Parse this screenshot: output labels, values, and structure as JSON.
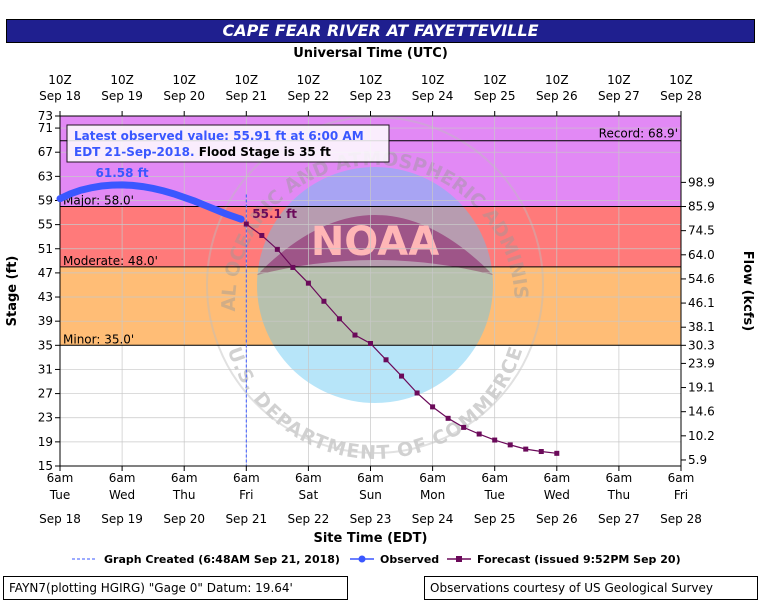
{
  "header": {
    "title": "CAPE FEAR RIVER AT FAYETTEVILLE"
  },
  "footer": {
    "left": "FAYN7(plotting HGIRG) \"Gage 0\" Datum: 19.64'",
    "right": "Observations courtesy of US Geological Survey"
  },
  "watermark": {
    "top_text": "NATIONAL OCEANIC AND ATMOSPHERIC ADMINISTRATION",
    "center_text": "NOAA",
    "bottom_text": "U.S. DEPARTMENT OF COMMERCE"
  },
  "chart_data": {
    "type": "line",
    "title": "CAPE FEAR RIVER AT FAYETTEVILLE",
    "top_axis_label": "Universal Time (UTC)",
    "xlabel": "Site Time (EDT)",
    "ylabel": "Stage (ft)",
    "y2label": "Flow (kcfs)",
    "ylim": [
      15,
      73
    ],
    "xlim": [
      0,
      240
    ],
    "yticks": [
      15,
      19,
      23,
      27,
      31,
      35,
      39,
      43,
      47,
      51,
      55,
      59,
      63,
      67,
      71,
      73
    ],
    "y2ticks": [
      {
        "stage": 16,
        "label": "5.9"
      },
      {
        "stage": 20,
        "label": "10.2"
      },
      {
        "stage": 24,
        "label": "14.6"
      },
      {
        "stage": 28,
        "label": "19.1"
      },
      {
        "stage": 32,
        "label": "23.9"
      },
      {
        "stage": 35,
        "label": "30.3"
      },
      {
        "stage": 38,
        "label": "38.1"
      },
      {
        "stage": 42,
        "label": "46.1"
      },
      {
        "stage": 46,
        "label": "54.6"
      },
      {
        "stage": 50,
        "label": "64.0"
      },
      {
        "stage": 54,
        "label": "74.5"
      },
      {
        "stage": 58,
        "label": "85.9"
      },
      {
        "stage": 62,
        "label": "98.9"
      }
    ],
    "top_ticks": [
      {
        "hour": 0,
        "time": "10Z",
        "date": "Sep 18"
      },
      {
        "hour": 24,
        "time": "10Z",
        "date": "Sep 19"
      },
      {
        "hour": 48,
        "time": "10Z",
        "date": "Sep 20"
      },
      {
        "hour": 72,
        "time": "10Z",
        "date": "Sep 21"
      },
      {
        "hour": 96,
        "time": "10Z",
        "date": "Sep 22"
      },
      {
        "hour": 120,
        "time": "10Z",
        "date": "Sep 23"
      },
      {
        "hour": 144,
        "time": "10Z",
        "date": "Sep 24"
      },
      {
        "hour": 168,
        "time": "10Z",
        "date": "Sep 25"
      },
      {
        "hour": 192,
        "time": "10Z",
        "date": "Sep 26"
      },
      {
        "hour": 216,
        "time": "10Z",
        "date": "Sep 27"
      },
      {
        "hour": 240,
        "time": "10Z",
        "date": "Sep 28"
      }
    ],
    "bottom_ticks": [
      {
        "hour": 0,
        "time": "6am",
        "day": "Tue",
        "date": "Sep 18"
      },
      {
        "hour": 24,
        "time": "6am",
        "day": "Wed",
        "date": "Sep 19"
      },
      {
        "hour": 48,
        "time": "6am",
        "day": "Thu",
        "date": "Sep 20"
      },
      {
        "hour": 72,
        "time": "6am",
        "day": "Fri",
        "date": "Sep 21"
      },
      {
        "hour": 96,
        "time": "6am",
        "day": "Sat",
        "date": "Sep 22"
      },
      {
        "hour": 120,
        "time": "6am",
        "day": "Sun",
        "date": "Sep 23"
      },
      {
        "hour": 144,
        "time": "6am",
        "day": "Mon",
        "date": "Sep 24"
      },
      {
        "hour": 168,
        "time": "6am",
        "day": "Tue",
        "date": "Sep 25"
      },
      {
        "hour": 192,
        "time": "6am",
        "day": "Wed",
        "date": "Sep 26"
      },
      {
        "hour": 216,
        "time": "6am",
        "day": "Thu",
        "date": "Sep 27"
      },
      {
        "hour": 240,
        "time": "6am",
        "day": "Fri",
        "date": "Sep 28"
      }
    ],
    "flood_categories": [
      {
        "name": "Record",
        "label": "Record: 68.9'",
        "stage": 68.9,
        "color": "#e289f5"
      },
      {
        "name": "Major",
        "label": "Major: 58.0'",
        "stage": 58.0,
        "color": "#e289f5"
      },
      {
        "name": "Moderate",
        "label": "Moderate: 48.0'",
        "stage": 48.0,
        "color": "#ff7a7a"
      },
      {
        "name": "Minor",
        "label": "Minor: 35.0'",
        "stage": 35.0,
        "color": "#ffbd76"
      }
    ],
    "latest_observation": {
      "line1": "Latest observed value: 55.91 ft at 6:00 AM",
      "line2": "EDT 21-Sep-2018.",
      "line2_flood": "Flood Stage is 35 ft"
    },
    "graph_created_hour": 72,
    "peak_label": "61.58 ft",
    "peak_point": {
      "x": 24,
      "y": 61.58
    },
    "forecast_start_label": "55.1 ft",
    "forecast_start_point": {
      "x": 72,
      "y": 55.1
    },
    "series": [
      {
        "name": "Observed",
        "color": "#3a57ff",
        "points": [
          [
            0,
            59.3
          ],
          [
            4,
            60.1
          ],
          [
            8,
            60.7
          ],
          [
            12,
            61.1
          ],
          [
            16,
            61.4
          ],
          [
            20,
            61.55
          ],
          [
            24,
            61.58
          ],
          [
            28,
            61.5
          ],
          [
            32,
            61.3
          ],
          [
            36,
            61.0
          ],
          [
            40,
            60.6
          ],
          [
            44,
            60.1
          ],
          [
            48,
            59.5
          ],
          [
            52,
            58.9
          ],
          [
            56,
            58.2
          ],
          [
            60,
            57.5
          ],
          [
            64,
            56.8
          ],
          [
            68,
            56.2
          ],
          [
            70,
            55.9
          ]
        ]
      },
      {
        "name": "Forecast",
        "color": "#6b0a5a",
        "points": [
          [
            72,
            55.1
          ],
          [
            78,
            53.2
          ],
          [
            84,
            50.9
          ],
          [
            90,
            47.9
          ],
          [
            96,
            45.3
          ],
          [
            102,
            42.3
          ],
          [
            108,
            39.4
          ],
          [
            114,
            36.7
          ],
          [
            120,
            35.3
          ],
          [
            126,
            32.6
          ],
          [
            132,
            29.9
          ],
          [
            138,
            27.1
          ],
          [
            144,
            24.8
          ],
          [
            150,
            22.9
          ],
          [
            156,
            21.4
          ],
          [
            162,
            20.3
          ],
          [
            168,
            19.3
          ],
          [
            174,
            18.5
          ],
          [
            180,
            17.8
          ],
          [
            186,
            17.4
          ],
          [
            192,
            17.1
          ]
        ]
      }
    ],
    "legend": {
      "placement": "bottom",
      "graph_created": "Graph Created (6:48AM Sep 21, 2018)",
      "observed": "Observed",
      "forecast": "Forecast (issued 9:52PM Sep 20)"
    },
    "colors": {
      "grid": "#c8c8c8",
      "axis": "#000000",
      "no_flood": "#ffffff"
    }
  }
}
